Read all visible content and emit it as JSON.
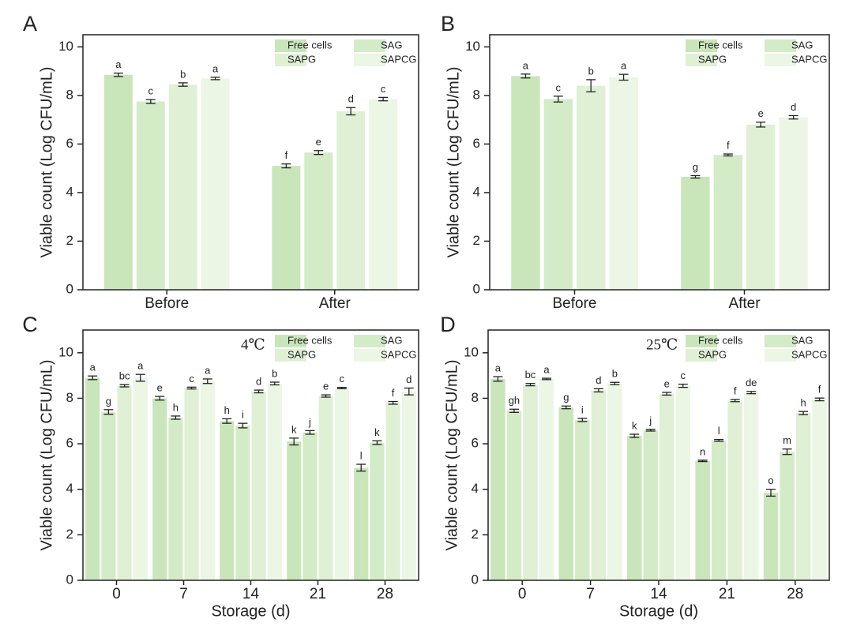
{
  "chart_data": [
    {
      "type": "bar",
      "panel_label": "A",
      "ylabel": "Viable count (Log CFU/mL)",
      "categories": [
        "Before",
        "After"
      ],
      "ylim": [
        0,
        10.5
      ],
      "yticks": [
        0,
        2,
        4,
        6,
        8,
        10
      ],
      "series": [
        {
          "name": "Free cells",
          "color": "#c9e6bb",
          "values": [
            8.85,
            5.1
          ],
          "errors": [
            0.07,
            0.08
          ],
          "letters": [
            "a",
            "f"
          ]
        },
        {
          "name": "SAG",
          "color": "#d4ebc7",
          "values": [
            7.75,
            5.65
          ],
          "errors": [
            0.08,
            0.08
          ],
          "letters": [
            "c",
            "e"
          ]
        },
        {
          "name": "SAPG",
          "color": "#dff0d4",
          "values": [
            8.45,
            7.35
          ],
          "errors": [
            0.07,
            0.15
          ],
          "letters": [
            "b",
            "d"
          ]
        },
        {
          "name": "SAPCG",
          "color": "#ebf6e4",
          "values": [
            8.7,
            7.85
          ],
          "errors": [
            0.05,
            0.07
          ],
          "letters": [
            "a",
            "c"
          ]
        }
      ]
    },
    {
      "type": "bar",
      "panel_label": "B",
      "ylabel": "Viable count (Log CFU/mL)",
      "categories": [
        "Before",
        "After"
      ],
      "ylim": [
        0,
        10.5
      ],
      "yticks": [
        0,
        2,
        4,
        6,
        8,
        10
      ],
      "series": [
        {
          "name": "Free cells",
          "color": "#c9e6bb",
          "values": [
            8.8,
            4.65
          ],
          "errors": [
            0.08,
            0.05
          ],
          "letters": [
            "a",
            "g"
          ]
        },
        {
          "name": "SAG",
          "color": "#d4ebc7",
          "values": [
            7.85,
            5.55
          ],
          "errors": [
            0.12,
            0.04
          ],
          "letters": [
            "c",
            "f"
          ]
        },
        {
          "name": "SAPG",
          "color": "#dff0d4",
          "values": [
            8.4,
            6.8
          ],
          "errors": [
            0.25,
            0.1
          ],
          "letters": [
            "b",
            "e"
          ]
        },
        {
          "name": "SAPCG",
          "color": "#ebf6e4",
          "values": [
            8.75,
            7.1
          ],
          "errors": [
            0.12,
            0.07
          ],
          "letters": [
            "a",
            "d"
          ]
        }
      ]
    },
    {
      "type": "bar",
      "panel_label": "C",
      "annotation": "4℃",
      "ylabel": "Viable count (Log CFU/mL)",
      "xlabel": "Storage (d)",
      "categories": [
        "0",
        "7",
        "14",
        "21",
        "28"
      ],
      "ylim": [
        0,
        11
      ],
      "yticks": [
        0,
        2,
        4,
        6,
        8,
        10
      ],
      "series": [
        {
          "name": "Free cells",
          "color": "#c9e6bb",
          "values": [
            8.9,
            8.0,
            7.0,
            6.1,
            4.95
          ],
          "errors": [
            0.08,
            0.08,
            0.1,
            0.15,
            0.15
          ],
          "letters": [
            "a",
            "e",
            "h",
            "k",
            "l"
          ]
        },
        {
          "name": "SAG",
          "color": "#d4ebc7",
          "values": [
            7.4,
            7.15,
            6.8,
            6.5,
            6.05
          ],
          "errors": [
            0.1,
            0.07,
            0.1,
            0.08,
            0.08
          ],
          "letters": [
            "g",
            "h",
            "i",
            "j",
            "k"
          ]
        },
        {
          "name": "SAPG",
          "color": "#dff0d4",
          "values": [
            8.55,
            8.45,
            8.3,
            8.1,
            7.8
          ],
          "errors": [
            0.05,
            0.04,
            0.06,
            0.05,
            0.06
          ],
          "letters": [
            "bc",
            "c",
            "d",
            "e",
            "f"
          ]
        },
        {
          "name": "SAPCG",
          "color": "#ebf6e4",
          "values": [
            8.9,
            8.75,
            8.65,
            8.45,
            8.3
          ],
          "errors": [
            0.15,
            0.1,
            0.06,
            0.03,
            0.15
          ],
          "letters": [
            "a",
            "a",
            "b",
            "c",
            "d"
          ]
        }
      ]
    },
    {
      "type": "bar",
      "panel_label": "D",
      "annotation": "25℃",
      "ylabel": "Viable count (Log CFU/mL)",
      "xlabel": "Storage (d)",
      "categories": [
        "0",
        "7",
        "14",
        "21",
        "28"
      ],
      "ylim": [
        0,
        11
      ],
      "yticks": [
        0,
        2,
        4,
        6,
        8,
        10
      ],
      "series": [
        {
          "name": "Free cells",
          "color": "#c9e6bb",
          "values": [
            8.85,
            7.6,
            6.35,
            5.25,
            3.85
          ],
          "errors": [
            0.1,
            0.06,
            0.07,
            0.03,
            0.15
          ],
          "letters": [
            "a",
            "g",
            "k",
            "n",
            "o"
          ]
        },
        {
          "name": "SAG",
          "color": "#d4ebc7",
          "values": [
            7.45,
            7.05,
            6.6,
            6.15,
            5.65
          ],
          "errors": [
            0.07,
            0.07,
            0.04,
            0.04,
            0.12
          ],
          "letters": [
            "gh",
            "i",
            "j",
            "l",
            "m"
          ]
        },
        {
          "name": "SAPG",
          "color": "#dff0d4",
          "values": [
            8.6,
            8.35,
            8.2,
            7.9,
            7.35
          ],
          "errors": [
            0.05,
            0.07,
            0.06,
            0.05,
            0.07
          ],
          "letters": [
            "bc",
            "d",
            "e",
            "f",
            "h"
          ]
        },
        {
          "name": "SAPCG",
          "color": "#ebf6e4",
          "values": [
            8.85,
            8.65,
            8.55,
            8.25,
            7.95
          ],
          "errors": [
            0.03,
            0.05,
            0.07,
            0.05,
            0.06
          ],
          "letters": [
            "a",
            "b",
            "c",
            "de",
            "f"
          ]
        }
      ]
    }
  ]
}
